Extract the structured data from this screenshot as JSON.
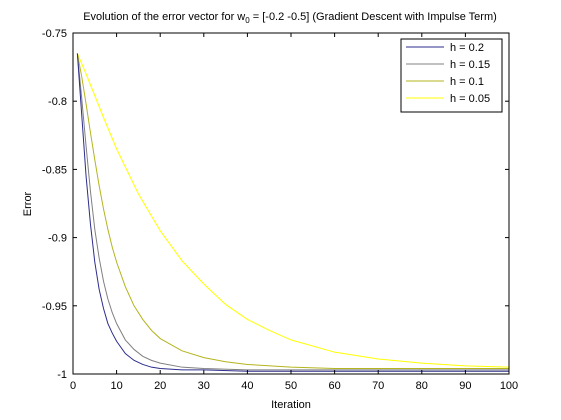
{
  "chart_data": {
    "type": "line",
    "title": {
      "prefix": "Evolution of the error vector for w",
      "subscript": "0",
      "suffix": " = [-0.2 -0.5] (Gradient Descent with Impulse Term)"
    },
    "xlabel": "Iteration",
    "ylabel": "Error",
    "xlim": [
      0,
      100
    ],
    "ylim": [
      -1,
      -0.75
    ],
    "xticks": [
      0,
      10,
      20,
      30,
      40,
      50,
      60,
      70,
      80,
      90,
      100
    ],
    "yticks": [
      -1,
      -0.95,
      -0.9,
      -0.85,
      -0.8,
      -0.75
    ],
    "xtick_labels": [
      "0",
      "10",
      "20",
      "30",
      "40",
      "50",
      "60",
      "70",
      "80",
      "90",
      "100"
    ],
    "ytick_labels": [
      "-1",
      "-0.95",
      "-0.9",
      "-0.85",
      "-0.8",
      "-0.75"
    ],
    "grid": false,
    "legend_position": "top-right",
    "series": [
      {
        "name": "h = 0.2",
        "color": "#2d2d8c",
        "x": [
          1,
          2,
          3,
          4,
          5,
          6,
          7,
          8,
          9,
          10,
          12,
          14,
          16,
          18,
          20,
          25,
          30,
          40,
          50,
          60,
          70,
          80,
          90,
          100
        ],
        "y": [
          -0.765,
          -0.81,
          -0.855,
          -0.89,
          -0.918,
          -0.938,
          -0.952,
          -0.963,
          -0.97,
          -0.976,
          -0.985,
          -0.99,
          -0.993,
          -0.995,
          -0.996,
          -0.997,
          -0.997,
          -0.998,
          -0.998,
          -0.998,
          -0.998,
          -0.998,
          -0.998,
          -0.998
        ]
      },
      {
        "name": "h = 0.15",
        "color": "#808080",
        "x": [
          1,
          2,
          3,
          4,
          5,
          6,
          7,
          8,
          9,
          10,
          12,
          14,
          16,
          18,
          20,
          25,
          30,
          40,
          50,
          60,
          70,
          80,
          90,
          100
        ],
        "y": [
          -0.765,
          -0.798,
          -0.833,
          -0.866,
          -0.894,
          -0.915,
          -0.932,
          -0.945,
          -0.955,
          -0.963,
          -0.975,
          -0.982,
          -0.987,
          -0.99,
          -0.992,
          -0.995,
          -0.996,
          -0.997,
          -0.997,
          -0.997,
          -0.997,
          -0.997,
          -0.997,
          -0.997
        ]
      },
      {
        "name": "h = 0.1",
        "color": "#b4b41e",
        "x": [
          1,
          2,
          3,
          4,
          5,
          6,
          7,
          8,
          9,
          10,
          12,
          14,
          16,
          18,
          20,
          25,
          30,
          35,
          40,
          50,
          60,
          70,
          80,
          90,
          100
        ],
        "y": [
          -0.765,
          -0.782,
          -0.802,
          -0.823,
          -0.843,
          -0.862,
          -0.879,
          -0.894,
          -0.907,
          -0.918,
          -0.936,
          -0.95,
          -0.96,
          -0.968,
          -0.974,
          -0.983,
          -0.988,
          -0.991,
          -0.993,
          -0.995,
          -0.996,
          -0.996,
          -0.996,
          -0.996,
          -0.996
        ]
      },
      {
        "name": "h = 0.05",
        "color": "#ffff00",
        "x": [
          1,
          3,
          5,
          7,
          10,
          15,
          20,
          25,
          30,
          35,
          40,
          45,
          50,
          60,
          70,
          80,
          90,
          100
        ],
        "y": [
          -0.765,
          -0.78,
          -0.796,
          -0.812,
          -0.835,
          -0.868,
          -0.895,
          -0.917,
          -0.934,
          -0.949,
          -0.96,
          -0.968,
          -0.975,
          -0.984,
          -0.989,
          -0.992,
          -0.994,
          -0.995
        ]
      }
    ]
  }
}
